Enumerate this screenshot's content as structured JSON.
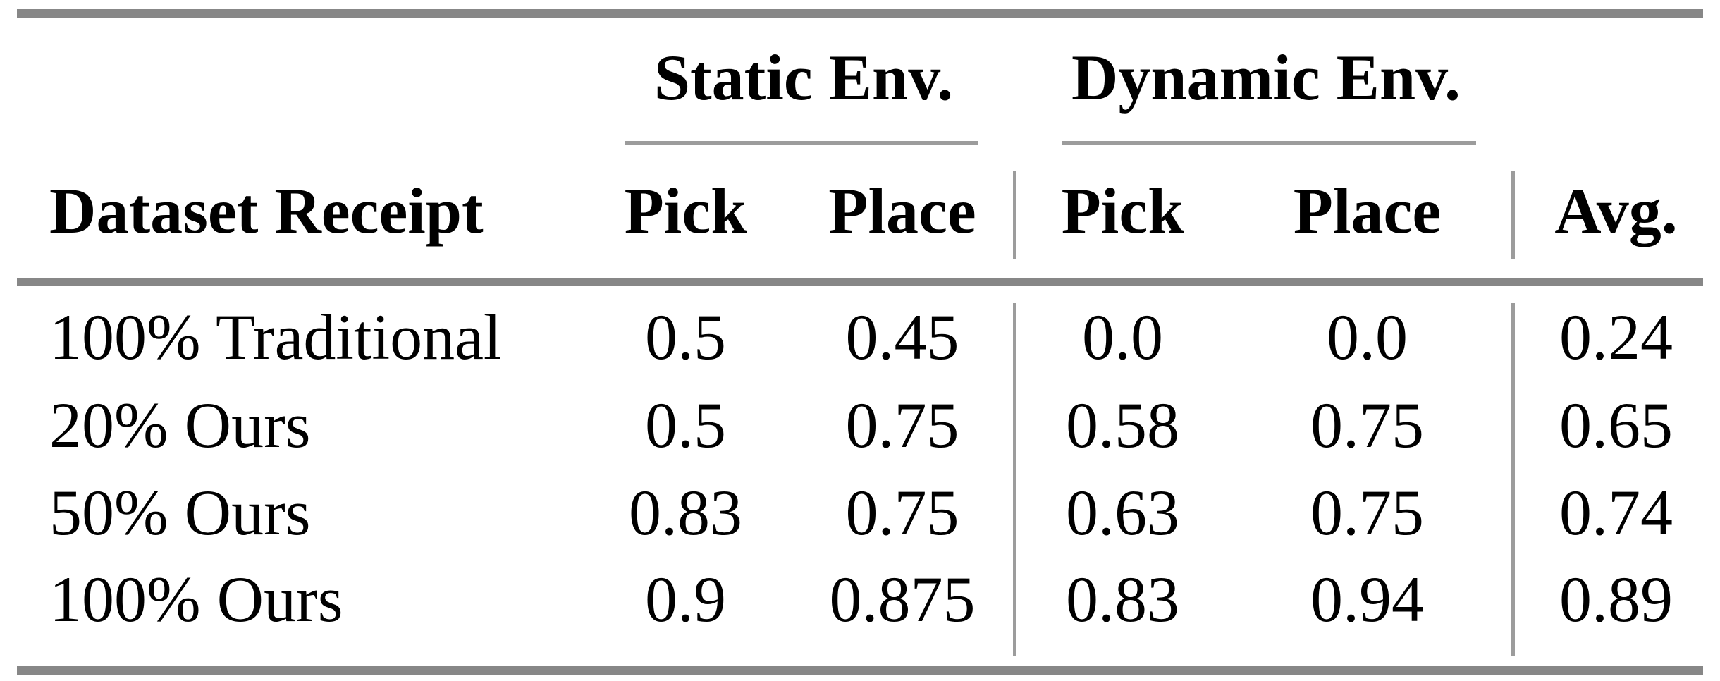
{
  "table": {
    "group_headers": {
      "static": "Static Env.",
      "dynamic": "Dynamic Env."
    },
    "columns": {
      "dataset": "Dataset Receipt",
      "static_pick": "Pick",
      "static_place": "Place",
      "dynamic_pick": "Pick",
      "dynamic_place": "Place",
      "avg": "Avg."
    },
    "rows": [
      {
        "dataset": "100% Traditional",
        "static_pick": "0.5",
        "static_place": "0.45",
        "dynamic_pick": "0.0",
        "dynamic_place": "0.0",
        "avg": "0.24"
      },
      {
        "dataset": "20% Ours",
        "static_pick": "0.5",
        "static_place": "0.75",
        "dynamic_pick": "0.58",
        "dynamic_place": "0.75",
        "avg": "0.65"
      },
      {
        "dataset": "50% Ours",
        "static_pick": "0.83",
        "static_place": "0.75",
        "dynamic_pick": "0.63",
        "dynamic_place": "0.75",
        "avg": "0.74"
      },
      {
        "dataset": "100% Ours",
        "static_pick": "0.9",
        "static_place": "0.875",
        "dynamic_pick": "0.83",
        "dynamic_place": "0.94",
        "avg": "0.89"
      }
    ]
  },
  "colors": {
    "background": "#ffffff",
    "text": "#000000",
    "rule_thick": "#878787",
    "rule_thin": "#9c9c9c"
  }
}
